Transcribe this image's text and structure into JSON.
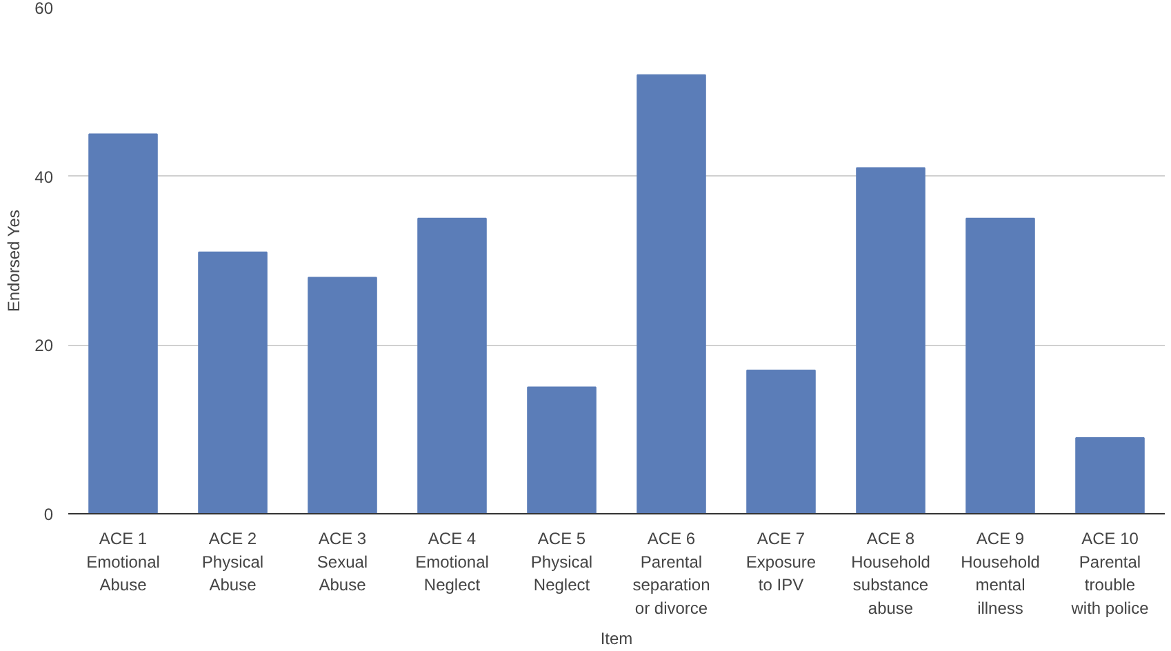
{
  "chart_data": {
    "type": "bar",
    "xlabel": "Item",
    "ylabel": "Endorsed Yes",
    "categories": [
      "ACE 1\nEmotional\nAbuse",
      "ACE 2\nPhysical\nAbuse",
      "ACE 3\nSexual\nAbuse",
      "ACE 4\nEmotional\nNeglect",
      "ACE 5\nPhysical\nNeglect",
      "ACE 6\nParental\nseparation\nor divorce",
      "ACE 7\nExposure\nto IPV",
      "ACE 8\nHousehold\nsubstance\nabuse",
      "ACE 9\nHousehold\nmental\nillness",
      "ACE 10\nParental\ntrouble\nwith police"
    ],
    "values": [
      45,
      31,
      28,
      35,
      15,
      52,
      17,
      41,
      35,
      9
    ],
    "color": "#5b7db8",
    "ylim": [
      0,
      60
    ],
    "yticks": [
      0,
      20,
      40,
      60
    ],
    "grid": "y"
  }
}
